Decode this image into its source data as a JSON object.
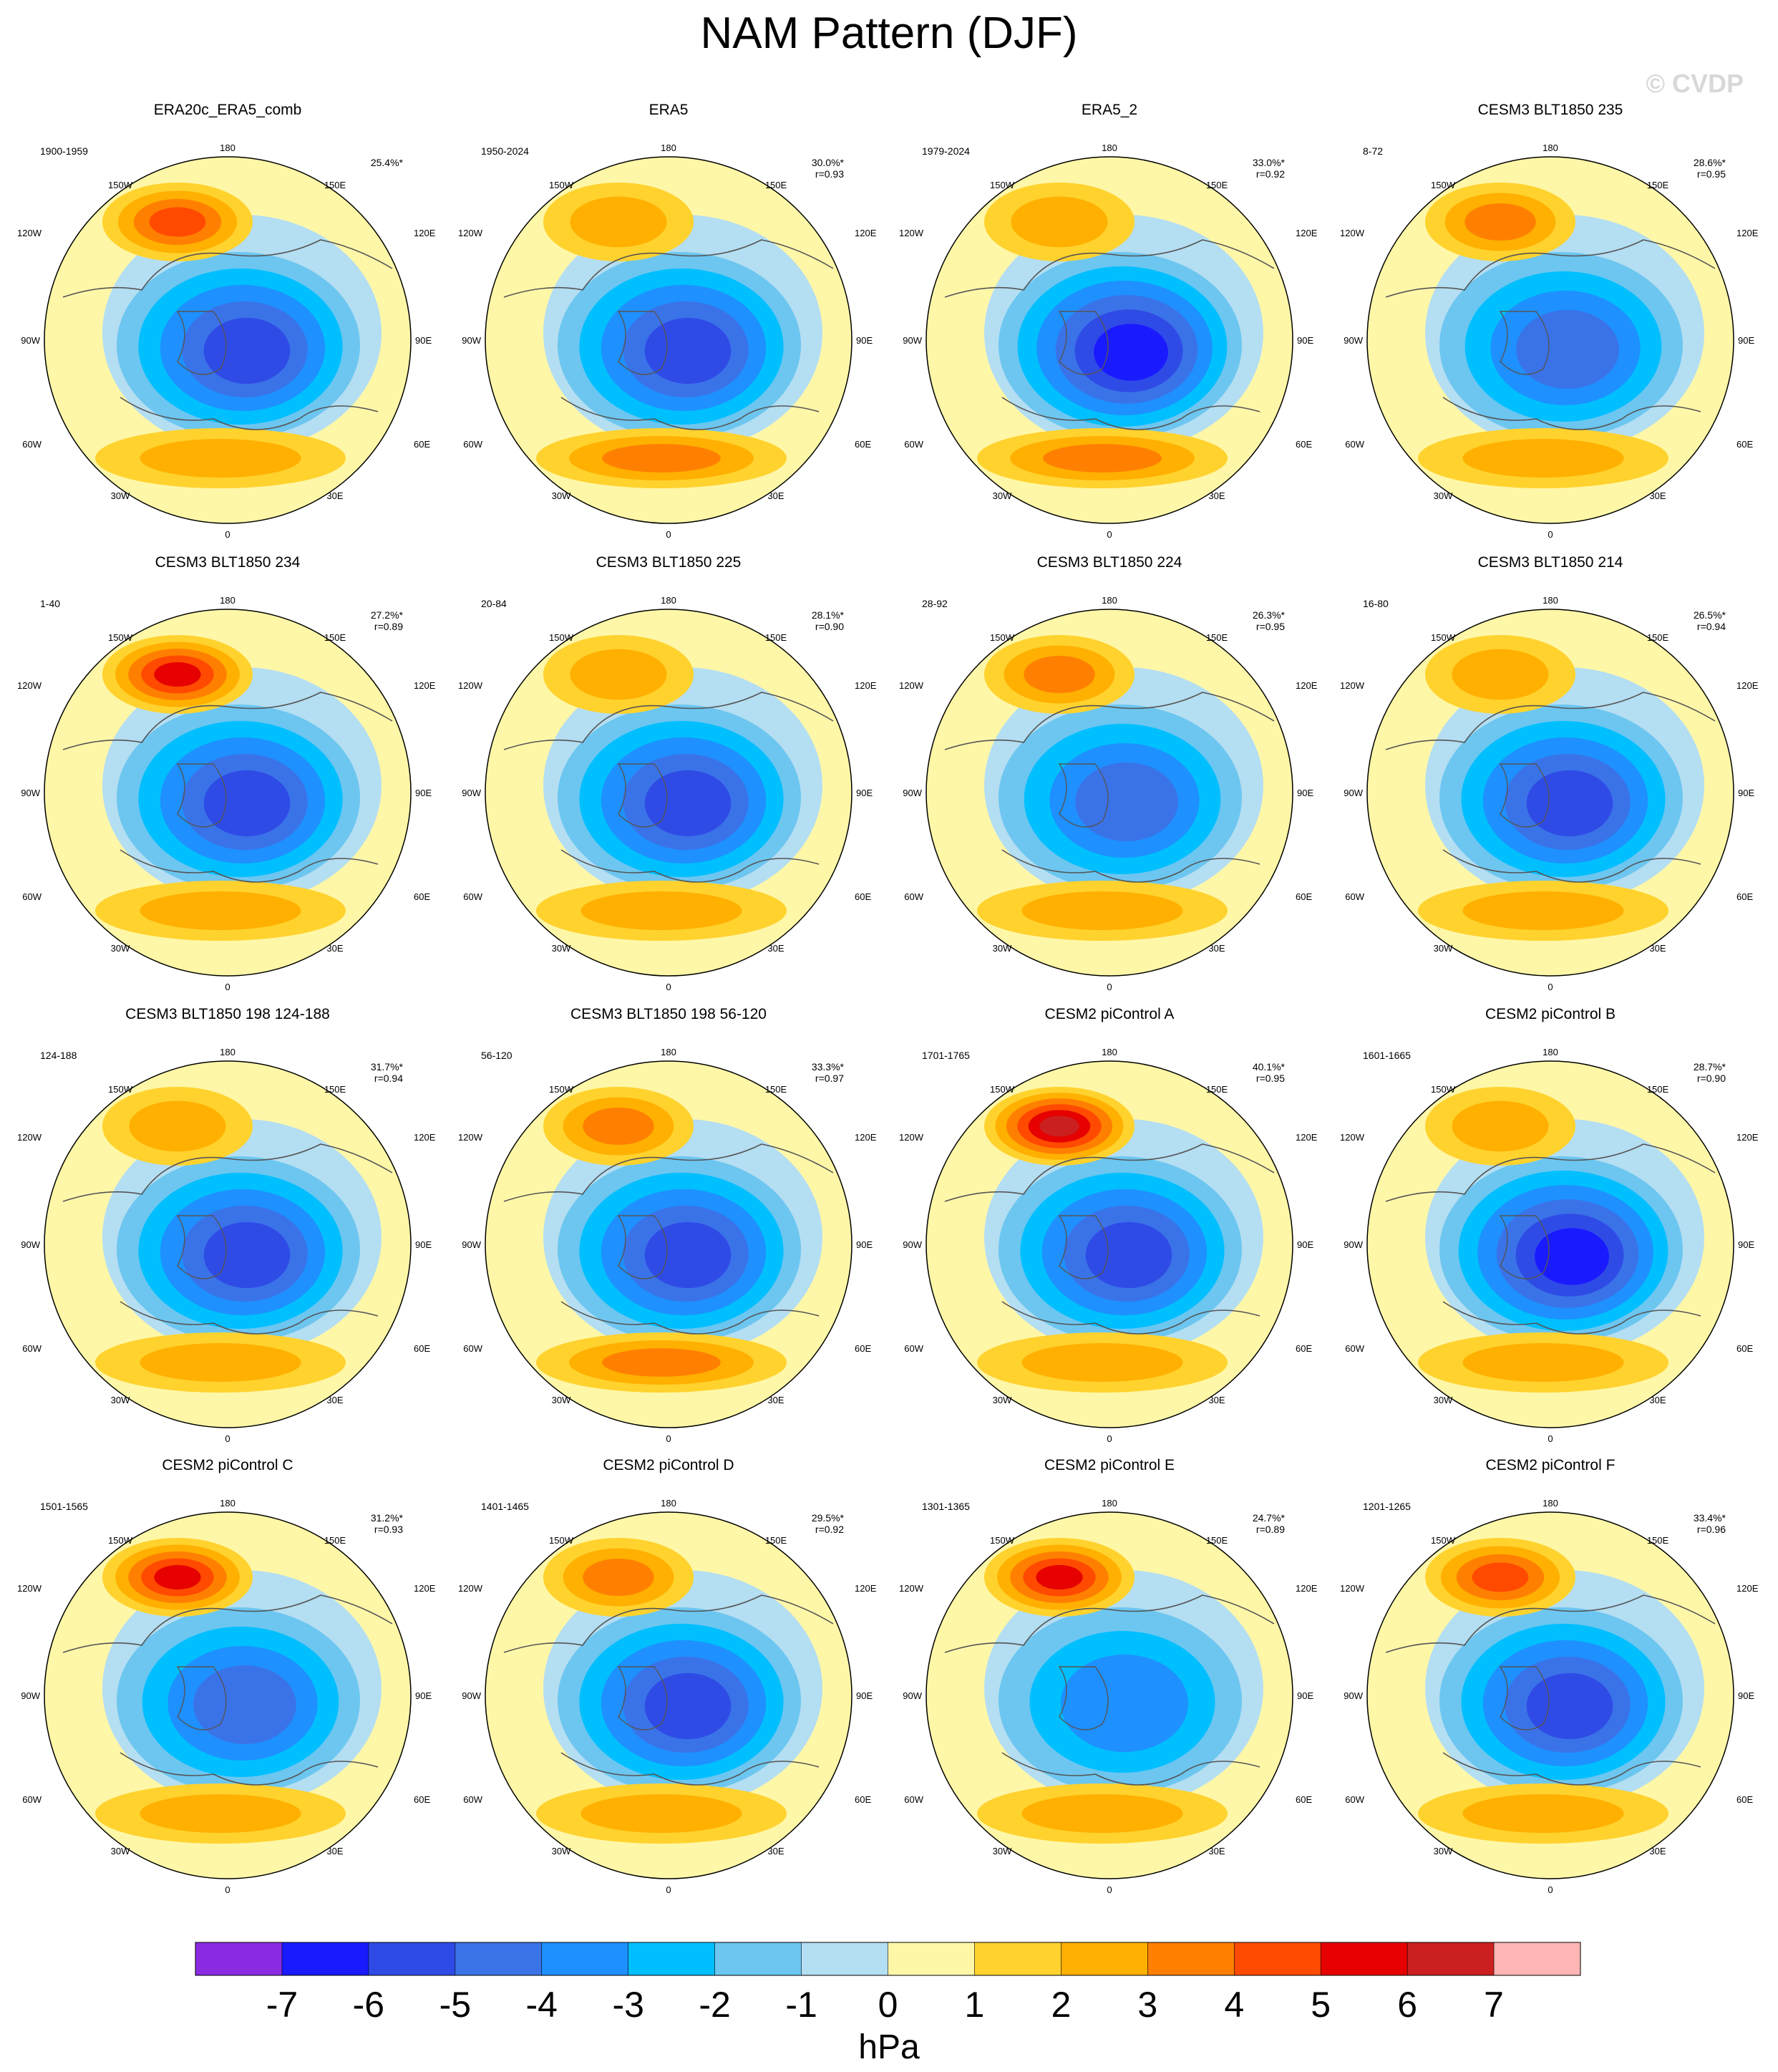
{
  "title": "NAM Pattern (DJF)",
  "watermark": "© CVDP",
  "lon_labels": {
    "top": "180",
    "bottom": "0",
    "upper_left": "150W",
    "upper_right": "150E",
    "mid_upper_left": "120W",
    "mid_upper_right": "120E",
    "left": "90W",
    "right": "90E",
    "mid_lower_left": "60W",
    "mid_lower_right": "60E",
    "lower_left": "30W",
    "lower_right": "30E"
  },
  "colors": {
    "ocean_positive_fill": "#fff7a8",
    "coastline": "#555555",
    "contour_levels": [
      -7,
      -6,
      -5,
      -4,
      -3,
      -2,
      -1,
      0,
      1,
      2,
      3,
      4,
      5,
      6,
      7
    ]
  },
  "panels": [
    {
      "title": "ERA20c_ERA5_comb",
      "period": "1900-1959",
      "pct": "25.4%*",
      "r": "",
      "high_strength": 4,
      "low_strength": 5,
      "atl_strength": 2
    },
    {
      "title": "ERA5",
      "period": "1950-2024",
      "pct": "30.0%*",
      "r": "r=0.93",
      "high_strength": 2,
      "low_strength": 5,
      "atl_strength": 3
    },
    {
      "title": "ERA5_2",
      "period": "1979-2024",
      "pct": "33.0%*",
      "r": "r=0.92",
      "high_strength": 2,
      "low_strength": 6,
      "atl_strength": 3
    },
    {
      "title": "CESM3 BLT1850 235",
      "period": "8-72",
      "pct": "28.6%*",
      "r": "r=0.95",
      "high_strength": 3,
      "low_strength": 4,
      "atl_strength": 2
    },
    {
      "title": "CESM3 BLT1850 234",
      "period": "1-40",
      "pct": "27.2%*",
      "r": "r=0.89",
      "high_strength": 5,
      "low_strength": 5,
      "atl_strength": 2
    },
    {
      "title": "CESM3 BLT1850 225",
      "period": "20-84",
      "pct": "28.1%*",
      "r": "r=0.90",
      "high_strength": 2,
      "low_strength": 5,
      "atl_strength": 2
    },
    {
      "title": "CESM3 BLT1850 224",
      "period": "28-92",
      "pct": "26.3%*",
      "r": "r=0.95",
      "high_strength": 3,
      "low_strength": 4,
      "atl_strength": 2
    },
    {
      "title": "CESM3 BLT1850 214",
      "period": "16-80",
      "pct": "26.5%*",
      "r": "r=0.94",
      "high_strength": 2,
      "low_strength": 5,
      "atl_strength": 2
    },
    {
      "title": "CESM3 BLT1850 198 124-188",
      "period": "124-188",
      "pct": "31.7%*",
      "r": "r=0.94",
      "high_strength": 2,
      "low_strength": 5,
      "atl_strength": 2
    },
    {
      "title": "CESM3 BLT1850 198 56-120",
      "period": "56-120",
      "pct": "33.3%*",
      "r": "r=0.97",
      "high_strength": 3,
      "low_strength": 5,
      "atl_strength": 3
    },
    {
      "title": "CESM2 piControl A",
      "period": "1701-1765",
      "pct": "40.1%*",
      "r": "r=0.95",
      "high_strength": 6,
      "low_strength": 5,
      "atl_strength": 2
    },
    {
      "title": "CESM2 piControl B",
      "period": "1601-1665",
      "pct": "28.7%*",
      "r": "r=0.90",
      "high_strength": 2,
      "low_strength": 6,
      "atl_strength": 2
    },
    {
      "title": "CESM2 piControl C",
      "period": "1501-1565",
      "pct": "31.2%*",
      "r": "r=0.93",
      "high_strength": 5,
      "low_strength": 4,
      "atl_strength": 2
    },
    {
      "title": "CESM2 piControl D",
      "period": "1401-1465",
      "pct": "29.5%*",
      "r": "r=0.92",
      "high_strength": 3,
      "low_strength": 5,
      "atl_strength": 2
    },
    {
      "title": "CESM2 piControl E",
      "period": "1301-1365",
      "pct": "24.7%*",
      "r": "r=0.89",
      "high_strength": 5,
      "low_strength": 3,
      "atl_strength": 2
    },
    {
      "title": "CESM2 piControl F",
      "period": "1201-1265",
      "pct": "33.4%*",
      "r": "r=0.96",
      "high_strength": 4,
      "low_strength": 5,
      "atl_strength": 2
    }
  ],
  "colorbar": {
    "colors": [
      "#8a2be2",
      "#1a1aff",
      "#2f4be6",
      "#3a73e8",
      "#1e90ff",
      "#00bfff",
      "#6cc6f0",
      "#b4def2",
      "#fff7a8",
      "#ffd22e",
      "#ffb000",
      "#ff8000",
      "#ff4a00",
      "#e60000",
      "#cc1f1f",
      "#ffb5b5"
    ],
    "ticks": [
      "-7",
      "-6",
      "-5",
      "-4",
      "-3",
      "-2",
      "-1",
      "0",
      "1",
      "2",
      "3",
      "4",
      "5",
      "6",
      "7"
    ],
    "unit": "hPa"
  }
}
